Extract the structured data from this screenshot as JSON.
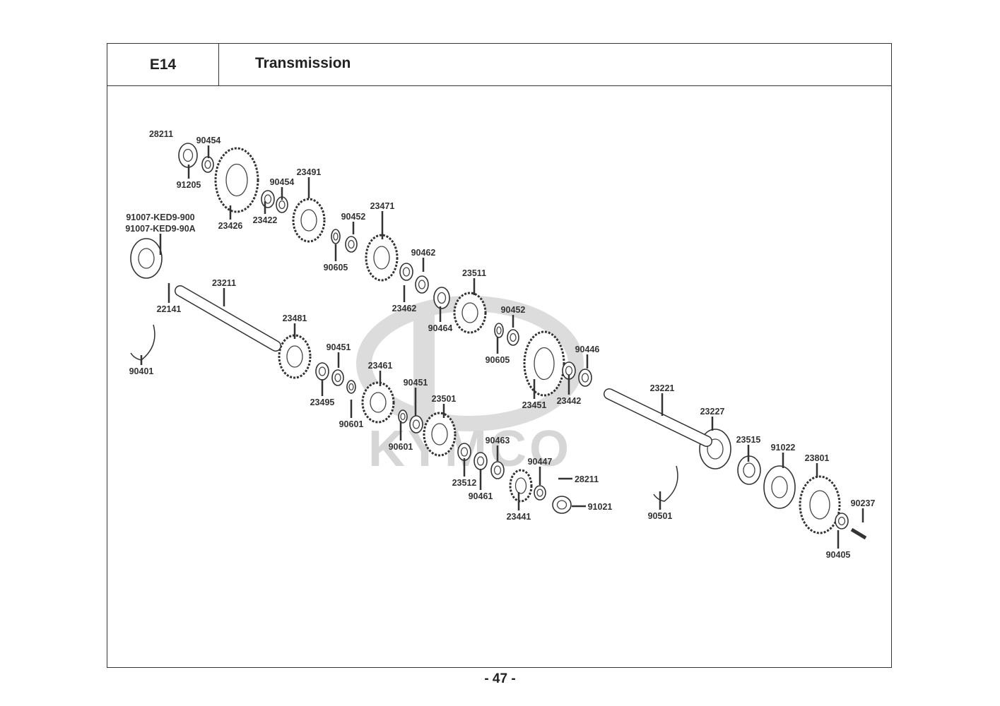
{
  "header": {
    "code": "E14",
    "title": "Transmission"
  },
  "watermark": {
    "logo_text": "KYMCO"
  },
  "part_labels": [
    "28211",
    "90454",
    "91205",
    "23426",
    "23422",
    "90454",
    "23491",
    "91007-KED9-900",
    "91007-KED9-90A",
    "90452",
    "23471",
    "90605",
    "90462",
    "23462",
    "90464",
    "23511",
    "90452",
    "90605",
    "23211",
    "22141",
    "90401",
    "23481",
    "90451",
    "23461",
    "23495",
    "90601",
    "90451",
    "23501",
    "90601",
    "23451",
    "23442",
    "90446",
    "23221",
    "23227",
    "23515",
    "91022",
    "23801",
    "90237",
    "90405",
    "90501",
    "90463",
    "23512",
    "90461",
    "90447",
    "28211",
    "91021",
    "23441"
  ],
  "footer": {
    "page_number": "- 47 -"
  },
  "colors": {
    "line": "#333333",
    "watermark": "#d6d6d6"
  }
}
